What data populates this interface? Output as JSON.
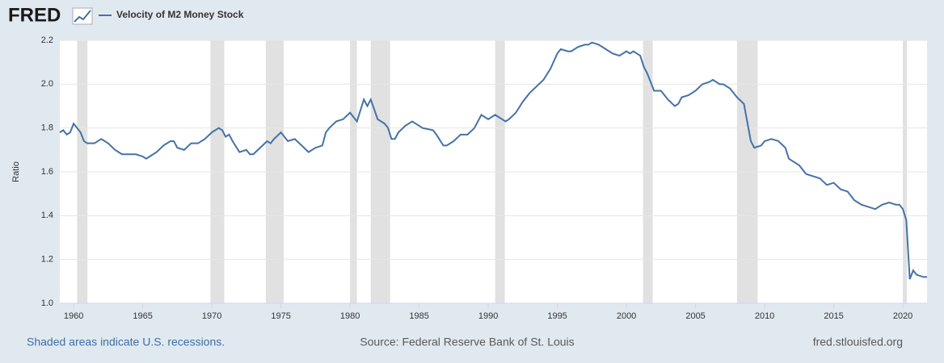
{
  "logo": "FRED",
  "footer": {
    "left": "Shaded areas indicate U.S. recessions.",
    "center": "Source: Federal Reserve Bank of St. Louis",
    "right": "fred.stlouisfed.org"
  },
  "chart_data": {
    "type": "line",
    "ylabel": "Ratio",
    "x": [
      1959.0,
      1959.25,
      1959.5,
      1959.75,
      1960.0,
      1960.5,
      1960.75,
      1961.0,
      1961.5,
      1962.0,
      1962.5,
      1963.0,
      1963.5,
      1964.0,
      1964.5,
      1965.0,
      1965.25,
      1965.5,
      1966.0,
      1966.5,
      1967.0,
      1967.25,
      1967.5,
      1968.0,
      1968.5,
      1969.0,
      1969.5,
      1970.0,
      1970.5,
      1970.75,
      1971.0,
      1971.25,
      1971.5,
      1972.0,
      1972.5,
      1972.75,
      1973.0,
      1973.5,
      1974.0,
      1974.25,
      1974.5,
      1975.0,
      1975.5,
      1976.0,
      1976.5,
      1977.0,
      1977.5,
      1978.0,
      1978.25,
      1978.5,
      1979.0,
      1979.5,
      1980.0,
      1980.25,
      1980.5,
      1981.0,
      1981.25,
      1981.5,
      1982.0,
      1982.5,
      1982.75,
      1983.0,
      1983.25,
      1983.5,
      1984.0,
      1984.5,
      1985.0,
      1985.25,
      1986.0,
      1986.25,
      1986.75,
      1987.0,
      1987.5,
      1988.0,
      1988.5,
      1989.0,
      1989.5,
      1990.0,
      1990.5,
      1991.0,
      1991.25,
      1991.5,
      1992.0,
      1992.5,
      1993.0,
      1993.5,
      1994.0,
      1994.5,
      1995.0,
      1995.25,
      1995.75,
      1996.0,
      1996.5,
      1997.0,
      1997.25,
      1997.5,
      1998.0,
      1998.5,
      1999.0,
      1999.5,
      2000.0,
      2000.25,
      2000.5,
      2001.0,
      2001.25,
      2001.5,
      2002.0,
      2002.5,
      2003.0,
      2003.5,
      2003.75,
      2004.0,
      2004.5,
      2005.0,
      2005.5,
      2006.0,
      2006.25,
      2006.75,
      2007.0,
      2007.5,
      2008.0,
      2008.5,
      2009.0,
      2009.25,
      2009.75,
      2010.0,
      2010.5,
      2011.0,
      2011.5,
      2011.75,
      2012.0,
      2012.5,
      2013.0,
      2013.5,
      2014.0,
      2014.5,
      2015.0,
      2015.5,
      2016.0,
      2016.5,
      2017.0,
      2017.5,
      2018.0,
      2018.5,
      2019.0,
      2019.5,
      2019.75,
      2020.0,
      2020.25,
      2020.5,
      2020.75,
      2021.0,
      2021.5,
      2021.75
    ],
    "series": [
      {
        "name": "Velocity of M2 Money Stock",
        "color": "#4572a7",
        "values": [
          1.78,
          1.79,
          1.77,
          1.78,
          1.82,
          1.78,
          1.74,
          1.73,
          1.73,
          1.75,
          1.73,
          1.7,
          1.68,
          1.68,
          1.68,
          1.67,
          1.66,
          1.67,
          1.69,
          1.72,
          1.74,
          1.74,
          1.71,
          1.7,
          1.73,
          1.73,
          1.75,
          1.78,
          1.8,
          1.79,
          1.76,
          1.77,
          1.74,
          1.69,
          1.7,
          1.68,
          1.68,
          1.71,
          1.74,
          1.73,
          1.75,
          1.78,
          1.74,
          1.75,
          1.72,
          1.69,
          1.71,
          1.72,
          1.78,
          1.8,
          1.83,
          1.84,
          1.87,
          1.85,
          1.83,
          1.93,
          1.9,
          1.93,
          1.84,
          1.82,
          1.8,
          1.75,
          1.75,
          1.78,
          1.81,
          1.83,
          1.81,
          1.8,
          1.79,
          1.77,
          1.72,
          1.72,
          1.74,
          1.77,
          1.77,
          1.8,
          1.86,
          1.84,
          1.86,
          1.84,
          1.83,
          1.84,
          1.87,
          1.92,
          1.96,
          1.99,
          2.02,
          2.07,
          2.14,
          2.16,
          2.15,
          2.15,
          2.17,
          2.18,
          2.18,
          2.19,
          2.18,
          2.16,
          2.14,
          2.13,
          2.15,
          2.14,
          2.15,
          2.13,
          2.08,
          2.05,
          1.97,
          1.97,
          1.93,
          1.9,
          1.91,
          1.94,
          1.95,
          1.97,
          2.0,
          2.01,
          2.02,
          2.0,
          2.0,
          1.98,
          1.94,
          1.91,
          1.74,
          1.71,
          1.72,
          1.74,
          1.75,
          1.74,
          1.71,
          1.66,
          1.65,
          1.63,
          1.59,
          1.58,
          1.57,
          1.54,
          1.55,
          1.52,
          1.51,
          1.47,
          1.45,
          1.44,
          1.43,
          1.45,
          1.46,
          1.45,
          1.45,
          1.43,
          1.38,
          1.11,
          1.15,
          1.13,
          1.12,
          1.12
        ]
      }
    ],
    "recessions": [
      [
        1960.25,
        1961.0
      ],
      [
        1969.9,
        1970.9
      ],
      [
        1973.9,
        1975.2
      ],
      [
        1980.0,
        1980.5
      ],
      [
        1981.5,
        1982.9
      ],
      [
        1990.5,
        1991.2
      ],
      [
        2001.2,
        2001.9
      ],
      [
        2008.0,
        2009.5
      ],
      [
        2020.0,
        2020.3
      ]
    ],
    "recession_color": "#e1e1e1",
    "xlim": [
      1959.0,
      2021.75
    ],
    "xticks": [
      1960,
      1965,
      1970,
      1975,
      1980,
      1985,
      1990,
      1995,
      2000,
      2005,
      2010,
      2015,
      2020
    ],
    "ylim": [
      1.0,
      2.2
    ],
    "yticks": [
      {
        "value": 1.0,
        "label": "1.0"
      },
      1.2,
      1.4,
      1.6,
      1.8,
      {
        "value": 2.0,
        "label": "2.0"
      },
      2.2
    ],
    "grid": true
  }
}
